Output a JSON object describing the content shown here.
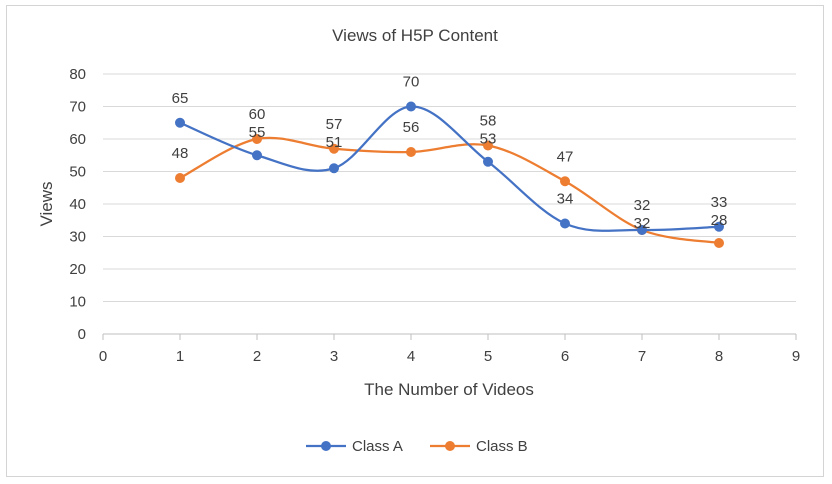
{
  "chart_data": {
    "type": "line",
    "title": "Views of H5P Content",
    "xlabel": "The Number of Videos",
    "ylabel": "Views",
    "xlim": [
      0,
      9
    ],
    "ylim": [
      0,
      80
    ],
    "xticks": [
      0,
      1,
      2,
      3,
      4,
      5,
      6,
      7,
      8,
      9
    ],
    "yticks": [
      0,
      10,
      20,
      30,
      40,
      50,
      60,
      70,
      80
    ],
    "grid": "horizontal",
    "legend_position": "bottom",
    "smooth": true,
    "x": [
      1,
      2,
      3,
      4,
      5,
      6,
      7,
      8
    ],
    "series": [
      {
        "name": "Class A",
        "color": "#4472c4",
        "values": [
          65,
          55,
          51,
          70,
          53,
          34,
          32,
          33
        ]
      },
      {
        "name": "Class B",
        "color": "#ed7d31",
        "values": [
          48,
          60,
          57,
          56,
          58,
          47,
          32,
          28
        ]
      }
    ]
  }
}
